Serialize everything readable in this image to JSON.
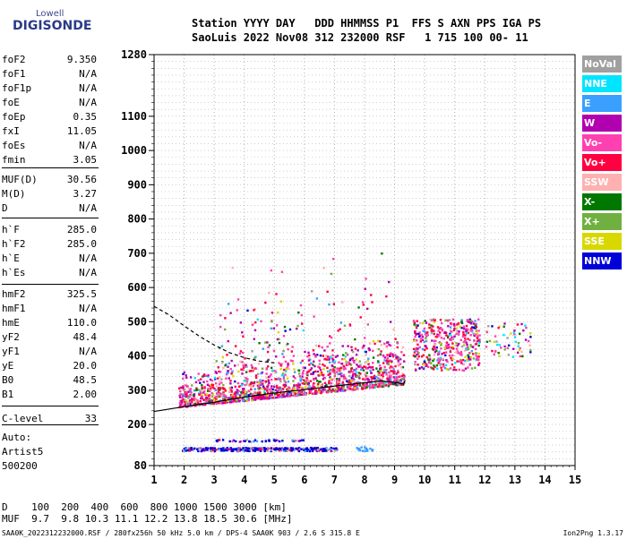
{
  "logo": {
    "top": "Lowell",
    "main": "DIGISONDE"
  },
  "header": {
    "line1": "Station YYYY DAY   DDD HHMMSS P1  FFS S AXN PPS IGA PS",
    "line2": "SaoLuis 2022 Nov08 312 232000 RSF   1 715 100 00- 11"
  },
  "params": [
    {
      "k": "foF2",
      "v": "9.350"
    },
    {
      "k": "foF1",
      "v": "N/A"
    },
    {
      "k": "foF1p",
      "v": "N/A"
    },
    {
      "k": "foE",
      "v": "N/A"
    },
    {
      "k": "foEp",
      "v": "0.35"
    },
    {
      "k": "fxI",
      "v": "11.05"
    },
    {
      "k": "foEs",
      "v": "N/A"
    },
    {
      "k": "fmin",
      "v": "3.05"
    },
    {
      "k": "MUF(D)",
      "v": "30.56"
    },
    {
      "k": "M(D)",
      "v": "3.27"
    },
    {
      "k": "D",
      "v": "N/A"
    },
    {
      "k": "h`F",
      "v": "285.0"
    },
    {
      "k": "h`F2",
      "v": "285.0"
    },
    {
      "k": "h`E",
      "v": "N/A"
    },
    {
      "k": "h`Es",
      "v": "N/A"
    },
    {
      "k": "hmF2",
      "v": "325.5"
    },
    {
      "k": "hmF1",
      "v": "N/A"
    },
    {
      "k": "hmE",
      "v": "110.0"
    },
    {
      "k": "yF2",
      "v": "48.4"
    },
    {
      "k": "yF1",
      "v": "N/A"
    },
    {
      "k": "yE",
      "v": "20.0"
    },
    {
      "k": "B0",
      "v": "48.5"
    },
    {
      "k": "B1",
      "v": "2.00"
    },
    {
      "k": "C-level",
      "v": "33"
    }
  ],
  "auto": {
    "line1": "Auto:",
    "line2": "Artist5",
    "line3": "500200"
  },
  "legend": [
    {
      "label": "NoVal",
      "color": "#a0a0a0"
    },
    {
      "label": "NNE",
      "color": "#00e5ff"
    },
    {
      "label": "E",
      "color": "#3aa0ff"
    },
    {
      "label": "W",
      "color": "#b000b0"
    },
    {
      "label": "Vo-",
      "color": "#ff40b0"
    },
    {
      "label": "Vo+",
      "color": "#ff0040"
    },
    {
      "label": "SSW",
      "color": "#ffb0b0"
    },
    {
      "label": "X-",
      "color": "#007800"
    },
    {
      "label": "X+",
      "color": "#70b040"
    },
    {
      "label": "SSE",
      "color": "#d8d800"
    },
    {
      "label": "NNW",
      "color": "#0000d8"
    }
  ],
  "table": {
    "line1": "D    100  200  400  600  800 1000 1500 3000 [km]",
    "line2": "MUF  9.7  9.8 10.3 11.1 12.2 13.8 18.5 30.6 [MHz]"
  },
  "footer": {
    "left": "SAA0K_2022312232000.RSF / 280fx256h 50 kHz 5.0 km / DPS-4 SAA0K 903 / 2.6 S 315.8 E",
    "right": "Ion2Png 1.3.17"
  },
  "chart_data": {
    "type": "scatter",
    "title": "",
    "xlabel": "",
    "ylabel": "",
    "xlim": [
      1,
      15
    ],
    "ylim": [
      80,
      1280
    ],
    "x_ticks": [
      1,
      2,
      3,
      4,
      5,
      6,
      7,
      8,
      9,
      10,
      11,
      12,
      13,
      14,
      15
    ],
    "y_ticks": [
      80,
      200,
      300,
      400,
      500,
      600,
      700,
      800,
      900,
      1000,
      1100,
      1280
    ],
    "grid": "dotted",
    "legend_position": "right",
    "series": [
      {
        "name": "trace-curve",
        "style": "solid",
        "x": [
          1.0,
          2.0,
          3.0,
          4.0,
          5.0,
          6.0,
          7.0,
          8.0,
          8.5,
          9.0,
          9.3,
          9.35
        ],
        "y": [
          238,
          252,
          265,
          280,
          292,
          302,
          312,
          322,
          327,
          323,
          318,
          330
        ]
      },
      {
        "name": "profile-curve",
        "style": "dashed",
        "x": [
          1.0,
          1.5,
          2.0,
          2.5,
          3.0,
          3.5,
          4.0,
          4.5,
          5.0
        ],
        "y": [
          545,
          520,
          488,
          458,
          432,
          410,
          395,
          385,
          380
        ]
      }
    ]
  }
}
